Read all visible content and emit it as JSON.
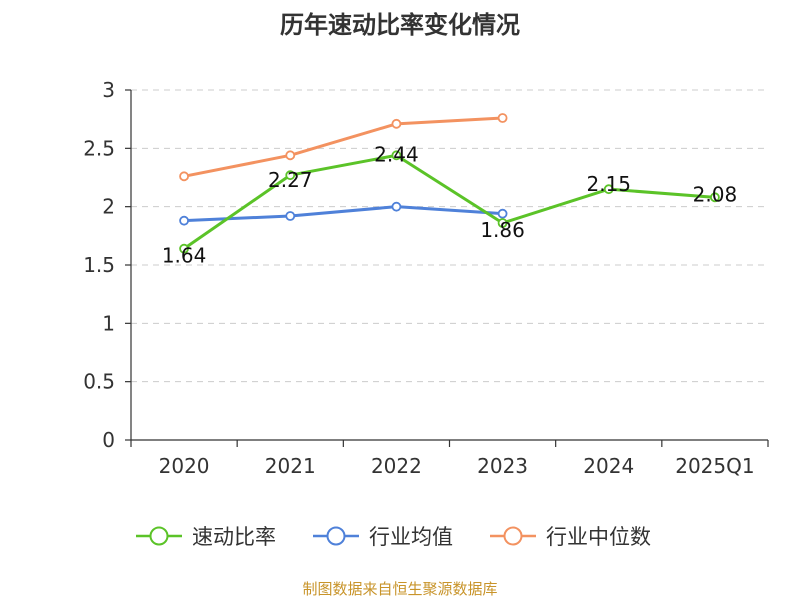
{
  "chart_data": {
    "type": "line",
    "title": "历年速动比率变化情况",
    "categories": [
      "2020",
      "2021",
      "2022",
      "2023",
      "2024",
      "2025Q1"
    ],
    "ylim": [
      0,
      3
    ],
    "yticks": [
      "0",
      "0.5",
      "1",
      "1.5",
      "2",
      "2.5",
      "3"
    ],
    "grid": true,
    "legend_position": "bottom",
    "series": [
      {
        "name": "速动比率",
        "color": "#5bc328",
        "values": [
          1.64,
          2.27,
          2.44,
          1.86,
          2.15,
          2.08
        ],
        "labels": [
          "1.64",
          "2.27",
          "2.44",
          "1.86",
          "2.15",
          "2.08"
        ]
      },
      {
        "name": "行业均值",
        "color": "#4f81d9",
        "values": [
          1.88,
          1.92,
          2.0,
          1.94,
          null,
          null
        ]
      },
      {
        "name": "行业中位数",
        "color": "#f39260",
        "values": [
          2.26,
          2.44,
          2.71,
          2.76,
          null,
          null
        ]
      }
    ],
    "source": "制图数据来自恒生聚源数据库"
  }
}
